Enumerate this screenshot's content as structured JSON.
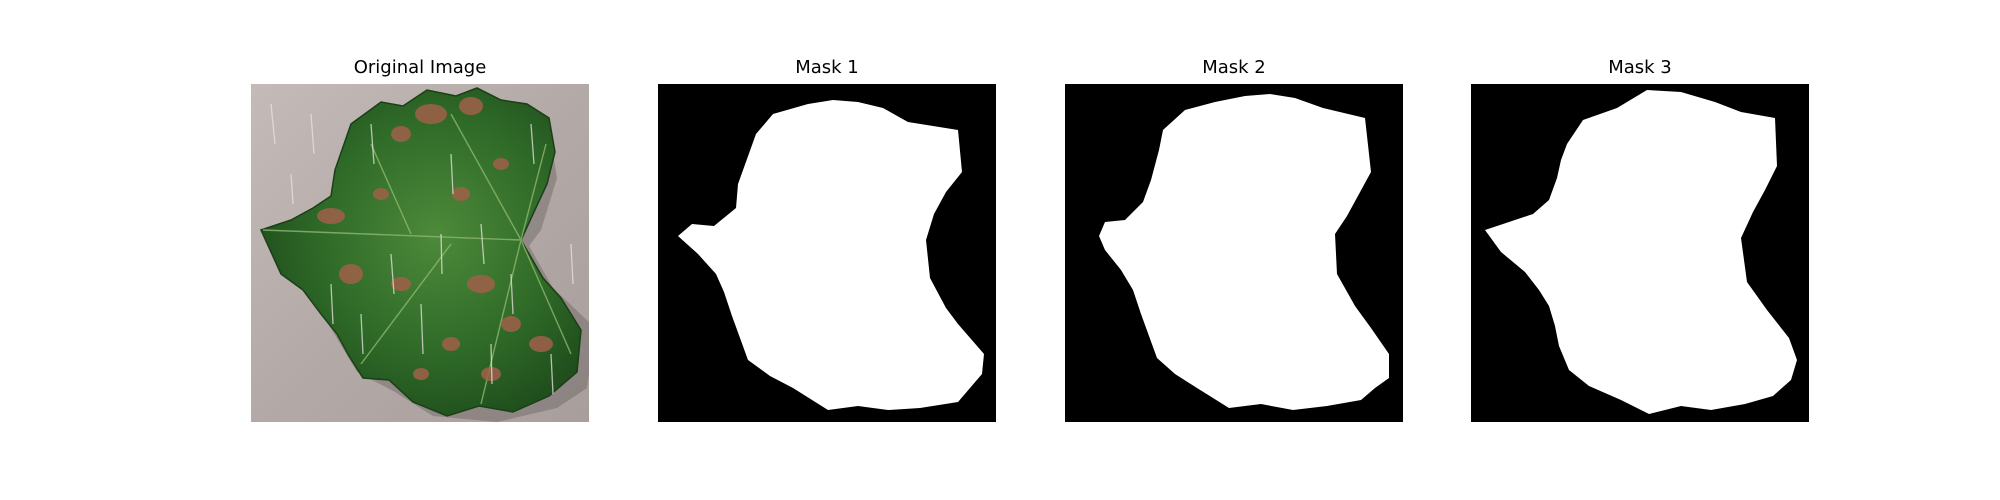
{
  "panels": [
    {
      "title": "Original Image"
    },
    {
      "title": "Mask 1"
    },
    {
      "title": "Mask 2"
    },
    {
      "title": "Mask 3"
    }
  ]
}
